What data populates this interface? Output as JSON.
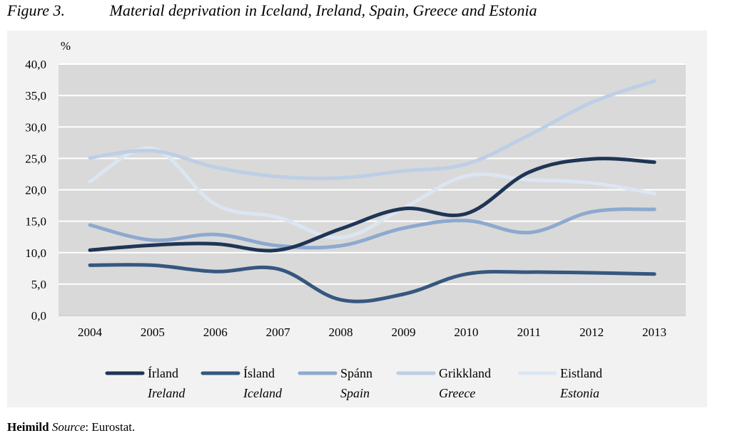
{
  "figure": {
    "label": "Figure 3.",
    "title": "Material deprivation in Iceland, Ireland, Spain, Greece and Estonia"
  },
  "source": {
    "label": "Heimild",
    "source_word": "Source",
    "text": ": Eurostat."
  },
  "chart_data": {
    "type": "line",
    "title": "Material deprivation in Iceland, Ireland, Spain, Greece and Estonia",
    "ylabel": "%",
    "xlabel": "",
    "ylim": [
      0,
      40
    ],
    "yticks": [
      "0,0",
      "5,0",
      "10,0",
      "15,0",
      "20,0",
      "25,0",
      "30,0",
      "35,0",
      "40,0"
    ],
    "categories": [
      "2004",
      "2005",
      "2006",
      "2007",
      "2008",
      "2009",
      "2010",
      "2011",
      "2012",
      "2013"
    ],
    "grid": true,
    "legend": "bottom",
    "plot_background": "#d9d9d9",
    "series": [
      {
        "name": "Írland",
        "name_en": "Ireland",
        "color": "#1f3555",
        "values": [
          10.4,
          11.2,
          11.4,
          10.4,
          13.8,
          17.0,
          16.2,
          22.8,
          24.9,
          24.4
        ]
      },
      {
        "name": "Ísland",
        "name_en": "Iceland",
        "color": "#36577f",
        "values": [
          8.0,
          8.0,
          7.0,
          7.4,
          2.5,
          3.4,
          6.6,
          6.9,
          6.8,
          6.6
        ]
      },
      {
        "name": "Spánn",
        "name_en": "Spain",
        "color": "#8ea9cf",
        "values": [
          14.4,
          12.0,
          12.9,
          11.1,
          11.1,
          13.9,
          15.1,
          13.2,
          16.5,
          16.9
        ]
      },
      {
        "name": "Grikkland",
        "name_en": "Greece",
        "color": "#bdcfe6",
        "values": [
          25.1,
          26.2,
          23.6,
          22.1,
          21.9,
          23.0,
          24.1,
          28.7,
          33.9,
          37.3
        ]
      },
      {
        "name": "Eistland",
        "name_en": "Estonia",
        "color": "#dce6f2",
        "values": [
          21.3,
          26.6,
          17.7,
          15.6,
          12.4,
          17.1,
          22.2,
          21.6,
          21.1,
          19.4
        ]
      }
    ]
  }
}
